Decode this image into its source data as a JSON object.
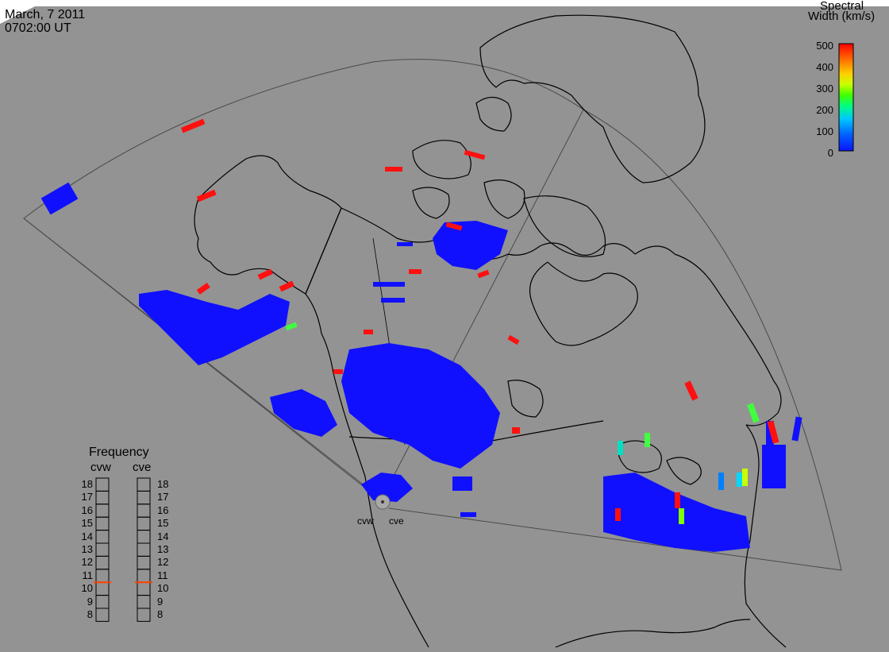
{
  "header": {
    "date": "March, 7 2011",
    "time": "0702:00 UT"
  },
  "colorbar": {
    "title_line1": "Spectral",
    "title_line2": "Width (km/s)",
    "ticks": [
      "500",
      "400",
      "300",
      "200",
      "100",
      "0"
    ],
    "min": 0,
    "max": 500,
    "colors": [
      "#0a14ff",
      "#0060ff",
      "#00c8ff",
      "#00ff80",
      "#40ff00",
      "#c8ff00",
      "#ffd000",
      "#ff7000",
      "#ff0000"
    ]
  },
  "frequency_panel": {
    "title": "Frequency",
    "radars": [
      "cvw",
      "cve"
    ],
    "ticks": [
      "18",
      "17",
      "16",
      "15",
      "14",
      "13",
      "12",
      "11",
      "10",
      "9",
      "8"
    ],
    "range": [
      8,
      18
    ],
    "current_mhz": {
      "cvw": 10.5,
      "cve": 10.5
    },
    "marker_color": "#ff4000"
  },
  "radar_labels": [
    "cvw",
    "cve"
  ],
  "colors": {
    "background": "#939393",
    "coastline": "#000000",
    "fov_outline": "#555555",
    "low_width": "#1010ff",
    "high_width": "#ff1010"
  }
}
